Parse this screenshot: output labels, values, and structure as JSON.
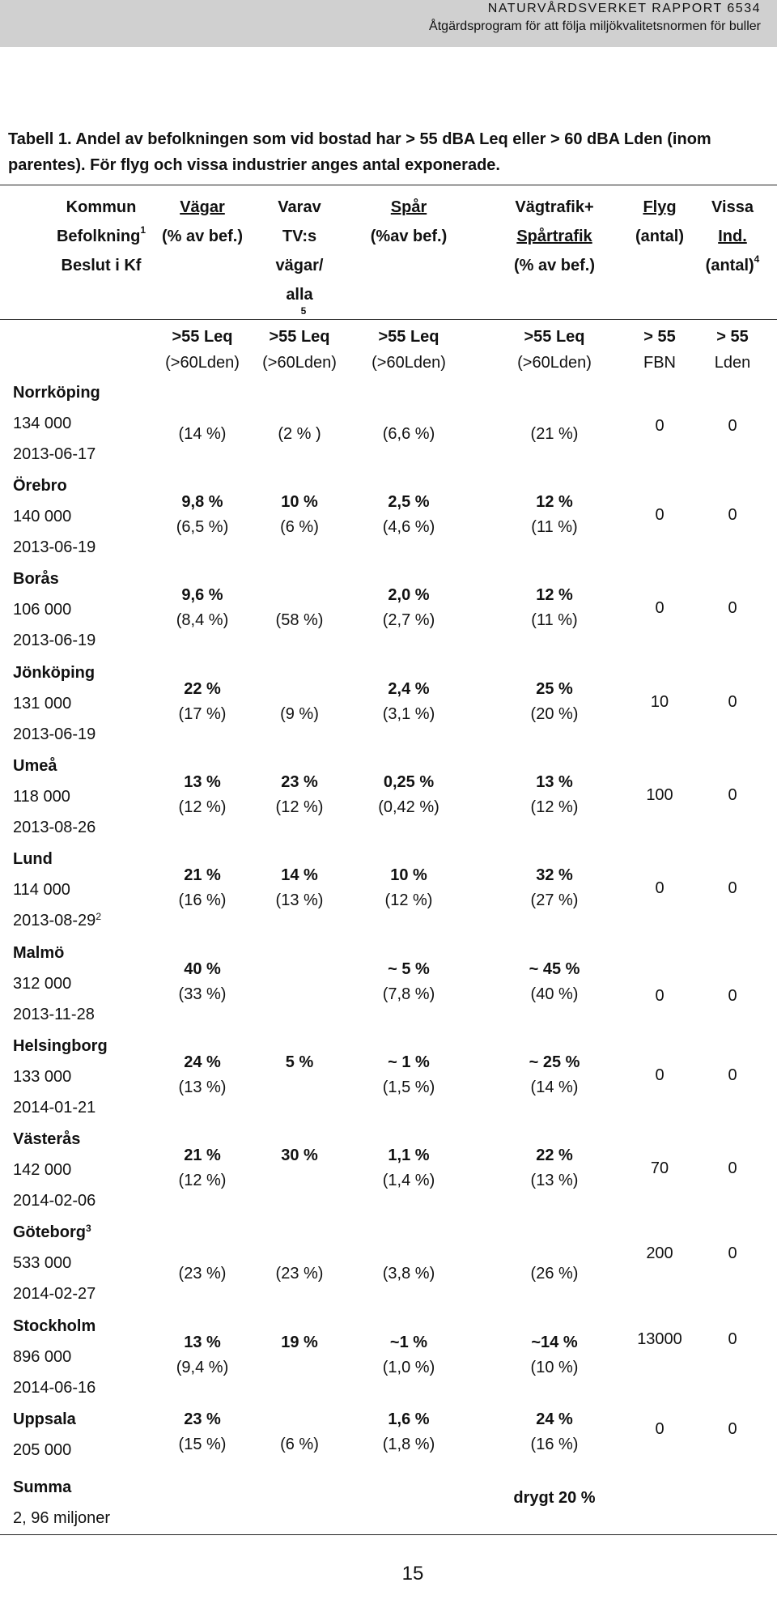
{
  "page_header": {
    "report": "NATURVÅRDSVERKET RAPPORT 6534",
    "subtitle": "Åtgärdsprogram för att följa miljökvalitetsnormen för buller"
  },
  "caption": "Tabell 1. Andel av befolkningen som vid bostad har > 55 dBA Leq eller > 60 dBA Lden (inom parentes). För flyg och vissa industrier anges antal exponerade.",
  "header": {
    "kommun": "Kommun",
    "befolkning": "Befolkning",
    "befolkning_sup": "1",
    "beslut": "Beslut i Kf",
    "vagar": [
      "Vägar",
      "(% av bef.)"
    ],
    "varav": [
      "Varav",
      "TV:s",
      "vägar/",
      "alla"
    ],
    "spar": [
      "Spår",
      "(%av bef.)"
    ],
    "vagtrafik": [
      "Vägtrafik+",
      "Spårtrafik",
      "(% av bef.)"
    ],
    "flyg": [
      "Flyg",
      "(antal)"
    ],
    "vissa": [
      "Vissa",
      "Ind.",
      "(antal)"
    ],
    "vissa_sup": "4",
    "varav_sup": "5",
    "metric_leq": ">55 Leq",
    "metric_lden": "(>60Lden)",
    "flyg_metric": [
      "> 55",
      "FBN"
    ],
    "vissa_metric": [
      "> 55",
      "Lden"
    ]
  },
  "rows": [
    {
      "name": "Norrköping",
      "pop": "134 000",
      "date": "2013-06-17",
      "date_sup": "",
      "vagar": [
        "",
        "(14 %)"
      ],
      "varav": [
        "",
        "(2 % )"
      ],
      "spar": [
        "",
        "(6,6 %)"
      ],
      "vagtrafik": [
        "",
        "(21 %)"
      ],
      "flyg": "0",
      "vissa": "0"
    },
    {
      "name": "Örebro",
      "pop": "140 000",
      "date": "2013-06-19",
      "date_sup": "",
      "vagar": [
        "9,8 %",
        "(6,5 %)"
      ],
      "varav": [
        "10 %",
        "(6 %)"
      ],
      "spar": [
        "2,5 %",
        "(4,6 %)"
      ],
      "vagtrafik": [
        "12 %",
        "(11 %)"
      ],
      "flyg": "0",
      "vissa": "0"
    },
    {
      "name": "Borås",
      "pop": "106 000",
      "date": "2013-06-19",
      "date_sup": "",
      "vagar": [
        "9,6 %",
        "(8,4 %)"
      ],
      "varav": [
        "",
        "(58 %)"
      ],
      "spar": [
        "2,0 %",
        "(2,7 %)"
      ],
      "vagtrafik": [
        "12 %",
        "(11 %)"
      ],
      "flyg": "0",
      "vissa": "0"
    },
    {
      "name": "Jönköping",
      "pop": "131 000",
      "date": "2013-06-19",
      "date_sup": "",
      "vagar": [
        "22 %",
        "(17 %)"
      ],
      "varav": [
        "",
        "(9 %)"
      ],
      "spar": [
        "2,4 %",
        "(3,1 %)"
      ],
      "vagtrafik": [
        "25 %",
        "(20 %)"
      ],
      "flyg": "10",
      "vissa": "0"
    },
    {
      "name": "Umeå",
      "pop": "118 000",
      "date": "2013-08-26",
      "date_sup": "",
      "vagar": [
        "13 %",
        "(12 %)"
      ],
      "varav": [
        "23 %",
        "(12 %)"
      ],
      "spar": [
        "0,25 %",
        "(0,42 %)"
      ],
      "vagtrafik": [
        "13 %",
        "(12 %)"
      ],
      "flyg": "100",
      "vissa": "0"
    },
    {
      "name": "Lund",
      "pop": "114 000",
      "date": "2013-08-29",
      "date_sup": "2",
      "vagar": [
        "21 %",
        "(16 %)"
      ],
      "varav": [
        "14 %",
        "(13 %)"
      ],
      "spar": [
        "10 %",
        "(12 %)"
      ],
      "vagtrafik": [
        "32 %",
        "(27 %)"
      ],
      "flyg": "0",
      "vissa": "0"
    },
    {
      "name": "Malmö",
      "pop": "312 000",
      "date": "2013-11-28",
      "date_sup": "",
      "vagar": [
        "40 %",
        "(33 %)"
      ],
      "varav": [
        "",
        ""
      ],
      "spar": [
        "~ 5 %",
        "(7,8 %)"
      ],
      "vagtrafik": [
        "~ 45 %",
        "(40 %)"
      ],
      "flyg": "0",
      "vissa": "0"
    },
    {
      "name": "Helsingborg",
      "pop": "133 000",
      "date": "2014-01-21",
      "date_sup": "",
      "vagar": [
        "24 %",
        "(13 %)"
      ],
      "varav": [
        "5 %",
        ""
      ],
      "spar": [
        "~ 1 %",
        "(1,5 %)"
      ],
      "vagtrafik": [
        "~ 25 %",
        "(14 %)"
      ],
      "flyg": "0",
      "vissa": "0"
    },
    {
      "name": "Västerås",
      "pop": "142 000",
      "date": "2014-02-06",
      "date_sup": "",
      "vagar": [
        "21 %",
        "(12 %)"
      ],
      "varav": [
        "30 %",
        ""
      ],
      "spar": [
        "1,1 %",
        "(1,4 %)"
      ],
      "vagtrafik": [
        "22 %",
        "(13 %)"
      ],
      "flyg": "70",
      "vissa": "0"
    },
    {
      "name": "Göteborg",
      "name_sup": "3",
      "pop": "533 000",
      "date": "2014-02-27",
      "date_sup": "",
      "vagar": [
        "",
        "(23 %)"
      ],
      "varav": [
        "",
        "(23 %)"
      ],
      "spar": [
        "",
        "(3,8 %)"
      ],
      "vagtrafik": [
        "",
        "(26 %)"
      ],
      "flyg": "200",
      "vissa": "0"
    },
    {
      "name": "Stockholm",
      "pop": "896 000",
      "date": "2014-06-16",
      "date_sup": "",
      "vagar": [
        "13 %",
        "(9,4 %)"
      ],
      "varav": [
        "19 %",
        ""
      ],
      "spar": [
        "~1 %",
        "(1,0 %)"
      ],
      "vagtrafik": [
        "~14 %",
        "(10 %)"
      ],
      "flyg": "13000",
      "vissa": "0"
    },
    {
      "name": "Uppsala",
      "pop": "205 000",
      "date": "",
      "date_sup": "",
      "vagar": [
        "23 %",
        "(15 %)"
      ],
      "varav": [
        "",
        "(6 %)"
      ],
      "spar": [
        "1,6 %",
        "(1,8 %)"
      ],
      "vagtrafik": [
        "24 %",
        "(16 %)"
      ],
      "flyg": "0",
      "vissa": "0"
    }
  ],
  "summa": {
    "name": "Summa",
    "pop": "2, 96 miljoner",
    "vagtrafik": "drygt 20 %"
  },
  "page_number": "15"
}
